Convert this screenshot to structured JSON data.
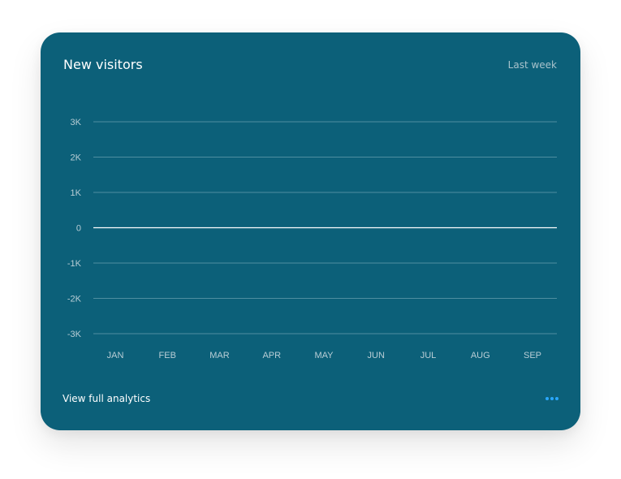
{
  "card": {
    "title": "New visitors",
    "period": "Last week",
    "footer_link": "View full analytics"
  },
  "icons": {
    "more": "more-dots-icon"
  },
  "colors": {
    "card_background": "#0c6079",
    "grid": "#4f8ea1",
    "zero_line": "#ffffff",
    "tick_label": "#b9ced6",
    "accent": "#2aa7ff"
  },
  "chart_data": {
    "type": "line",
    "categories": [
      "JAN",
      "FEB",
      "MAR",
      "APR",
      "MAY",
      "JUN",
      "JUL",
      "AUG",
      "SEP"
    ],
    "y_ticks": [
      "3K",
      "2K",
      "1K",
      "0",
      "-1K",
      "-2K",
      "-3K"
    ],
    "ylim": [
      -3000,
      3000
    ],
    "series": [],
    "grid": true,
    "legend": "none"
  }
}
